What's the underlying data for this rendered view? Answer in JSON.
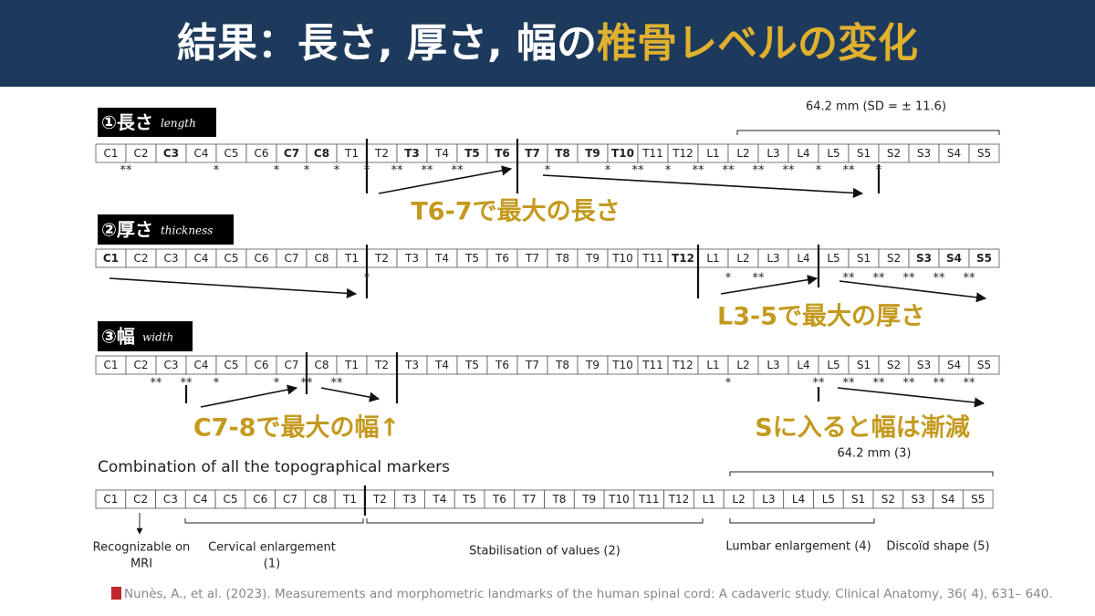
{
  "header": {
    "title": "結果：長さ, 厚さ, 幅の",
    "title_highlight": "椎骨レベルの変化"
  },
  "levels": [
    "C1",
    "C2",
    "C3",
    "C4",
    "C5",
    "C6",
    "C7",
    "C8",
    "T1",
    "T2",
    "T3",
    "T4",
    "T5",
    "T6",
    "T7",
    "T8",
    "T9",
    "T10",
    "T11",
    "T12",
    "L1",
    "L2",
    "L3",
    "L4",
    "L5",
    "S1",
    "S2",
    "S3",
    "S4",
    "S5"
  ],
  "panels": [
    {
      "label": "①長さ",
      "label_en": "length",
      "bold": [
        2,
        6,
        7,
        10,
        12,
        13,
        14,
        15,
        16,
        17
      ],
      "marks": [
        "**",
        null,
        null,
        "*",
        null,
        "*",
        "*",
        "*",
        "*",
        "**",
        "**",
        "**",
        null,
        null,
        "*",
        null,
        "*",
        "**",
        "*",
        "**",
        "**",
        "**",
        "**",
        "*",
        "**",
        "*",
        null,
        null,
        null
      ],
      "callouts": [
        "T6-7で最大の長さ"
      ]
    },
    {
      "label": "②厚さ",
      "label_en": "thickness",
      "bold": [
        0,
        19,
        27,
        28,
        29
      ],
      "marks": [
        null,
        null,
        null,
        null,
        null,
        null,
        null,
        null,
        "*",
        null,
        null,
        null,
        null,
        null,
        null,
        null,
        null,
        null,
        null,
        null,
        "*",
        "**",
        null,
        null,
        "**",
        "**",
        "**",
        "**",
        "**"
      ],
      "callouts": [
        "L3-5で最大の厚さ"
      ]
    },
    {
      "label": "③幅",
      "label_en": "width",
      "bold": [],
      "marks": [
        null,
        "**",
        "**",
        "*",
        null,
        "*",
        "**",
        "**",
        null,
        null,
        null,
        null,
        null,
        null,
        null,
        null,
        null,
        null,
        null,
        null,
        "*",
        null,
        null,
        "**",
        "**",
        "**",
        "**",
        "**",
        "**"
      ],
      "callouts": [
        "C7-8で最大の幅↑",
        "Sに入ると幅は漸減"
      ]
    }
  ],
  "length_note": "64.2 mm (SD = ± 11.6)",
  "combination": {
    "title": "Combination of all the topographical markers",
    "note": "64.2 mm (3)",
    "groups": [
      {
        "lines": [
          "Recognizable on",
          "MRI"
        ]
      },
      {
        "lines": [
          "Cervical enlargement",
          "(1)"
        ]
      },
      {
        "lines": [
          "Stabilisation of values (2)"
        ]
      },
      {
        "lines": [
          "Lumbar enlargement (4)"
        ]
      },
      {
        "lines": [
          "Discoïd shape (5)"
        ]
      }
    ]
  },
  "citation": "Nunès, A., et al. (2023). Measurements and morphometric landmarks of the human spinal cord: A cadaveric study. Clinical Anatomy, 36( 4), 631– 640."
}
